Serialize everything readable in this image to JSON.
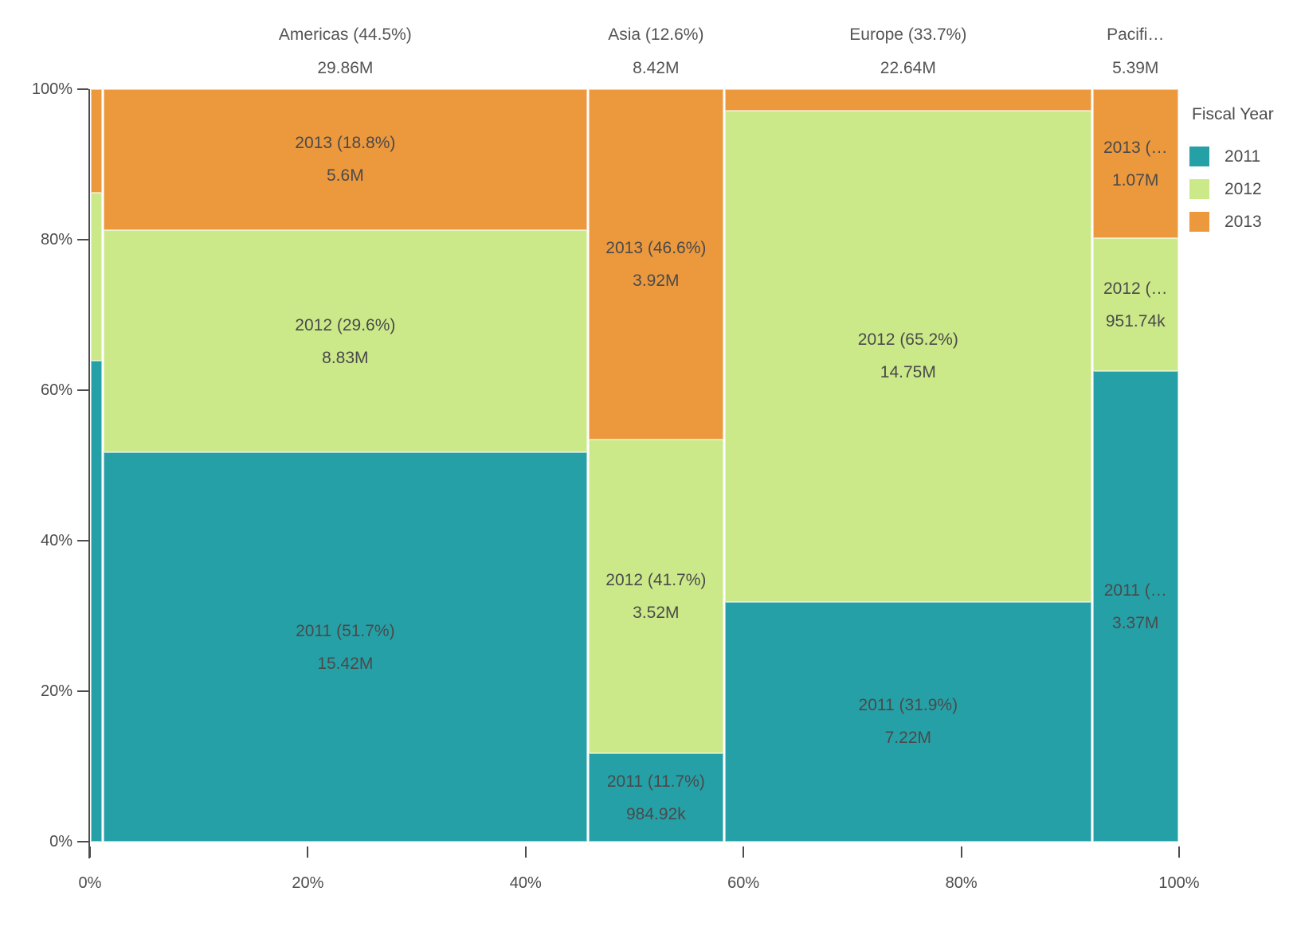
{
  "chart_data": {
    "type": "mosaic",
    "legend": {
      "title": "Fiscal Year",
      "position": "right",
      "items": [
        {
          "label": "2011",
          "color": "#26a0a7"
        },
        {
          "label": "2012",
          "color": "#cbe989"
        },
        {
          "label": "2013",
          "color": "#ec983d"
        }
      ]
    },
    "x_axis": {
      "tick_labels": [
        "0%",
        "20%",
        "40%",
        "60%",
        "80%",
        "100%"
      ],
      "range": [
        0,
        100
      ]
    },
    "y_axis": {
      "tick_labels": [
        "0%",
        "20%",
        "40%",
        "60%",
        "80%",
        "100%"
      ],
      "range": [
        0,
        100
      ]
    },
    "columns": [
      {
        "region": "",
        "width_pct": 1.18,
        "header_line1": "",
        "header_line2": "",
        "segments": [
          {
            "year": "2011",
            "height_pct": 63.9,
            "label_line1": "",
            "label_line2": ""
          },
          {
            "year": "2012",
            "height_pct": 22.3,
            "label_line1": "",
            "label_line2": ""
          },
          {
            "year": "2013",
            "height_pct": 13.8,
            "label_line1": "",
            "label_line2": ""
          }
        ]
      },
      {
        "region": "Americas",
        "width_pct": 44.51,
        "header_line1": "Americas (44.5%)",
        "header_line2": "29.86M",
        "segments": [
          {
            "year": "2011",
            "height_pct": 51.7,
            "label_line1": "2011 (51.7%)",
            "label_line2": "15.42M"
          },
          {
            "year": "2012",
            "height_pct": 29.6,
            "label_line1": "2012 (29.6%)",
            "label_line2": "8.83M"
          },
          {
            "year": "2013",
            "height_pct": 18.7,
            "label_line1": "2013 (18.8%)",
            "label_line2": "5.6M"
          }
        ]
      },
      {
        "region": "Asia",
        "width_pct": 12.55,
        "header_line1": "Asia (12.6%)",
        "header_line2": "8.42M",
        "segments": [
          {
            "year": "2011",
            "height_pct": 11.7,
            "label_line1": "2011 (11.7%)",
            "label_line2": "984.92k"
          },
          {
            "year": "2012",
            "height_pct": 41.7,
            "label_line1": "2012 (41.7%)",
            "label_line2": "3.52M"
          },
          {
            "year": "2013",
            "height_pct": 46.6,
            "label_line1": "2013 (46.6%)",
            "label_line2": "3.92M"
          }
        ]
      },
      {
        "region": "Europe",
        "width_pct": 33.75,
        "header_line1": "Europe (33.7%)",
        "header_line2": "22.64M",
        "segments": [
          {
            "year": "2011",
            "height_pct": 31.9,
            "label_line1": "2011 (31.9%)",
            "label_line2": "7.22M"
          },
          {
            "year": "2012",
            "height_pct": 65.2,
            "label_line1": "2012 (65.2%)",
            "label_line2": "14.75M"
          },
          {
            "year": "2013",
            "height_pct": 2.9,
            "label_line1": "",
            "label_line2": ""
          }
        ]
      },
      {
        "region": "Pacific",
        "width_pct": 8.01,
        "header_line1": "Pacifi…",
        "header_line2": "5.39M",
        "segments": [
          {
            "year": "2011",
            "height_pct": 62.5,
            "label_line1": "2011 (…",
            "label_line2": "3.37M"
          },
          {
            "year": "2012",
            "height_pct": 17.7,
            "label_line1": "2012 (…",
            "label_line2": "951.74k"
          },
          {
            "year": "2013",
            "height_pct": 19.8,
            "label_line1": "2013 (…",
            "label_line2": "1.07M"
          }
        ]
      }
    ]
  }
}
